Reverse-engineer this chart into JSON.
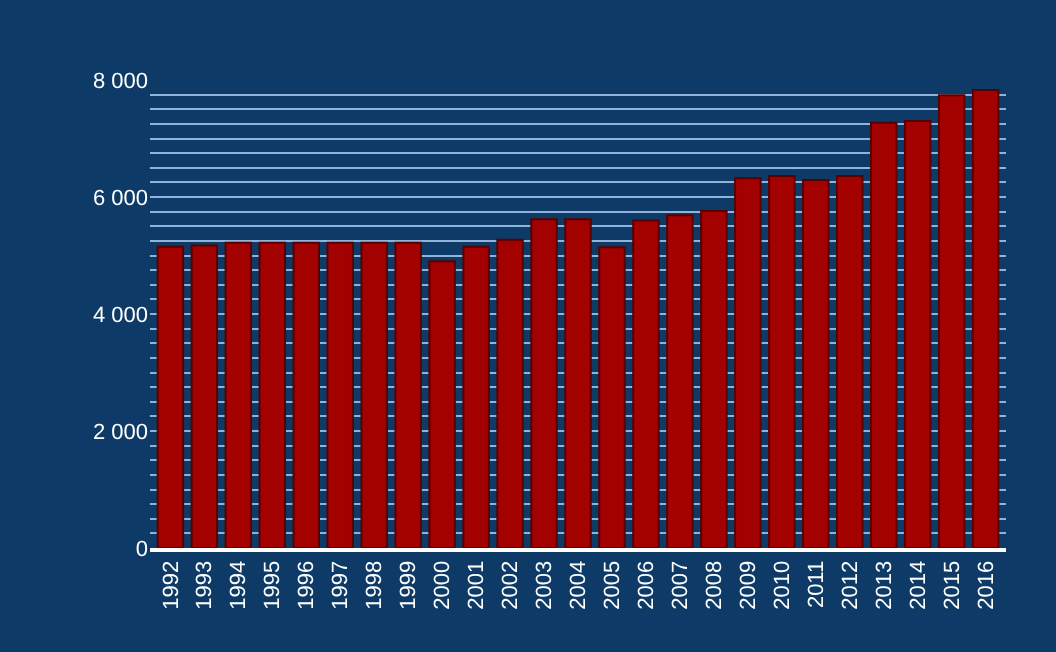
{
  "chart_data": {
    "type": "bar",
    "categories": [
      "1992",
      "1993",
      "1994",
      "1995",
      "1996",
      "1997",
      "1998",
      "1999",
      "2000",
      "2001",
      "2002",
      "2003",
      "2004",
      "2005",
      "2006",
      "2007",
      "2008",
      "2009",
      "2010",
      "2011",
      "2012",
      "2013",
      "2014",
      "2015",
      "2016"
    ],
    "values": [
      5150,
      5170,
      5220,
      5220,
      5220,
      5220,
      5220,
      5220,
      4900,
      5150,
      5270,
      5620,
      5620,
      5140,
      5600,
      5690,
      5760,
      6320,
      6360,
      6290,
      6360,
      7270,
      7300,
      7740,
      7830
    ],
    "color": "#a30000",
    "ylim": [
      0,
      8000
    ],
    "yticks": [
      {
        "value": 0,
        "label": "0"
      },
      {
        "value": 250,
        "label": null
      },
      {
        "value": 500,
        "label": null
      },
      {
        "value": 750,
        "label": null
      },
      {
        "value": 1000,
        "label": null
      },
      {
        "value": 1250,
        "label": null
      },
      {
        "value": 1500,
        "label": null
      },
      {
        "value": 1750,
        "label": null
      },
      {
        "value": 2000,
        "label": "2 000"
      },
      {
        "value": 2250,
        "label": null
      },
      {
        "value": 2500,
        "label": null
      },
      {
        "value": 2750,
        "label": null
      },
      {
        "value": 3000,
        "label": null
      },
      {
        "value": 3250,
        "label": null
      },
      {
        "value": 3500,
        "label": null
      },
      {
        "value": 3750,
        "label": null
      },
      {
        "value": 4000,
        "label": "4 000"
      },
      {
        "value": 4250,
        "label": null
      },
      {
        "value": 4500,
        "label": null
      },
      {
        "value": 4750,
        "label": null
      },
      {
        "value": 5000,
        "label": null
      },
      {
        "value": 5250,
        "label": null
      },
      {
        "value": 5500,
        "label": null
      },
      {
        "value": 5750,
        "label": null
      },
      {
        "value": 6000,
        "label": "6 000"
      },
      {
        "value": 6250,
        "label": null
      },
      {
        "value": 6500,
        "label": null
      },
      {
        "value": 6750,
        "label": null
      },
      {
        "value": 7000,
        "label": null
      },
      {
        "value": 7250,
        "label": null
      },
      {
        "value": 7500,
        "label": null
      },
      {
        "value": 7750,
        "label": null
      },
      {
        "value": 8000,
        "label": "8 000"
      }
    ],
    "grid": "y"
  }
}
